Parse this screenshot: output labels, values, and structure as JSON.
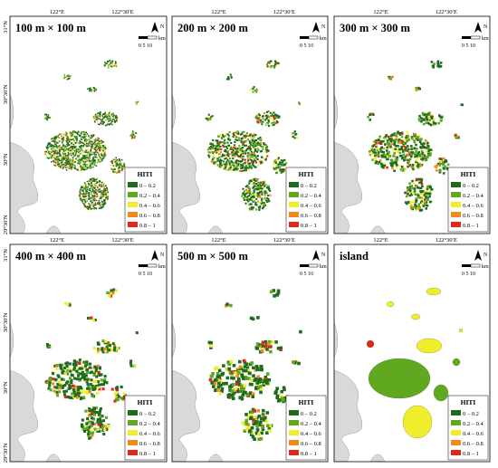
{
  "figure": {
    "panels": [
      {
        "title": "100 m × 100 m",
        "mode": "grid"
      },
      {
        "title": "200 m × 200 m",
        "mode": "grid"
      },
      {
        "title": "300 m × 300 m",
        "mode": "grid"
      },
      {
        "title": "400 m × 400 m",
        "mode": "grid"
      },
      {
        "title": "500 m × 500 m",
        "mode": "grid"
      },
      {
        "title": "island",
        "mode": "island"
      }
    ],
    "lon_ticks": [
      "122°E",
      "122°30′E"
    ],
    "lat_ticks": [
      "31°N",
      "30°30′N",
      "30°N",
      "29°30′N"
    ],
    "north_label": "N",
    "scale": {
      "unit": "km",
      "ticks": "0  5 10"
    },
    "legend": {
      "title": "HITI",
      "classes": [
        {
          "label": "0 – 0.2",
          "color": "#1e6b1e"
        },
        {
          "label": "0.2 – 0.4",
          "color": "#5fa81f"
        },
        {
          "label": "0.4 – 0.6",
          "color": "#f0ee2a"
        },
        {
          "label": "0.6 – 0.8",
          "color": "#f08a1c"
        },
        {
          "label": "0.8 – 1",
          "color": "#e3261a"
        }
      ]
    },
    "colors": {
      "land": "#d9d9d9",
      "border": "#888888",
      "frame": "#000000"
    }
  }
}
